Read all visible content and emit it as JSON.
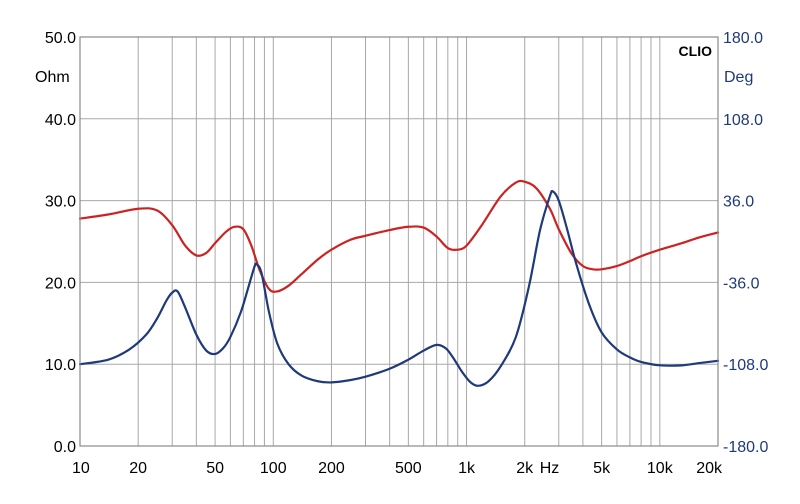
{
  "chart_data": {
    "type": "line",
    "brand": "CLIO",
    "x_scale": "log",
    "xlim": [
      10,
      20000
    ],
    "x_ticks": [
      {
        "v": 10,
        "label": "10"
      },
      {
        "v": 20,
        "label": "20"
      },
      {
        "v": 50,
        "label": "50"
      },
      {
        "v": 100,
        "label": "100"
      },
      {
        "v": 200,
        "label": "200"
      },
      {
        "v": 500,
        "label": "500"
      },
      {
        "v": 1000,
        "label": "1k"
      },
      {
        "v": 2000,
        "label": "2k"
      },
      {
        "v": 5000,
        "label": "5k"
      },
      {
        "v": 10000,
        "label": "10k"
      },
      {
        "v": 20000,
        "label": "20k"
      }
    ],
    "x_unit_label": "Hz",
    "y_left": {
      "unit": "Ohm",
      "lim": [
        0,
        50
      ],
      "ticks": [
        "0.0",
        "10.0",
        "20.0",
        "30.0",
        "40.0",
        "50.0"
      ],
      "color": "#000000"
    },
    "y_right": {
      "unit": "Deg",
      "lim": [
        -180,
        180
      ],
      "ticks": [
        "-180.0",
        "-108.0",
        "-36.0",
        "36.0",
        "108.0",
        "180.0"
      ],
      "color": "#1f3a7a"
    },
    "grid": true,
    "series": [
      {
        "key": "impedance",
        "axis": "left",
        "color": "#cc2222",
        "points": [
          [
            10,
            27.8
          ],
          [
            14,
            28.3
          ],
          [
            20,
            29
          ],
          [
            25,
            28.8
          ],
          [
            30,
            27
          ],
          [
            35,
            24.5
          ],
          [
            40,
            23.3
          ],
          [
            45,
            23.6
          ],
          [
            50,
            24.8
          ],
          [
            57,
            26.2
          ],
          [
            63,
            26.8
          ],
          [
            70,
            26.5
          ],
          [
            77,
            24.5
          ],
          [
            85,
            21.5
          ],
          [
            95,
            19.2
          ],
          [
            105,
            18.9
          ],
          [
            120,
            19.6
          ],
          [
            140,
            21
          ],
          [
            170,
            22.8
          ],
          [
            200,
            24
          ],
          [
            250,
            25.2
          ],
          [
            300,
            25.7
          ],
          [
            400,
            26.4
          ],
          [
            500,
            26.8
          ],
          [
            600,
            26.7
          ],
          [
            700,
            25.6
          ],
          [
            800,
            24.2
          ],
          [
            900,
            24
          ],
          [
            1000,
            24.5
          ],
          [
            1200,
            27
          ],
          [
            1500,
            30.5
          ],
          [
            1800,
            32.2
          ],
          [
            2000,
            32.3
          ],
          [
            2300,
            31.5
          ],
          [
            2700,
            29
          ],
          [
            3000,
            26.5
          ],
          [
            3500,
            23.5
          ],
          [
            4000,
            22
          ],
          [
            4500,
            21.6
          ],
          [
            5000,
            21.6
          ],
          [
            6000,
            22
          ],
          [
            7000,
            22.6
          ],
          [
            8000,
            23.2
          ],
          [
            10000,
            24
          ],
          [
            13000,
            24.8
          ],
          [
            16000,
            25.5
          ],
          [
            20000,
            26.1
          ]
        ]
      },
      {
        "key": "phase",
        "axis": "right",
        "color": "#1f3a7a",
        "points": [
          [
            10,
            -108
          ],
          [
            14,
            -104
          ],
          [
            18,
            -95
          ],
          [
            22,
            -82
          ],
          [
            25,
            -68
          ],
          [
            28,
            -52
          ],
          [
            30,
            -45
          ],
          [
            32,
            -44
          ],
          [
            35,
            -58
          ],
          [
            40,
            -82
          ],
          [
            45,
            -96
          ],
          [
            50,
            -99
          ],
          [
            55,
            -94
          ],
          [
            60,
            -84
          ],
          [
            68,
            -62
          ],
          [
            75,
            -38
          ],
          [
            80,
            -22
          ],
          [
            82,
            -20
          ],
          [
            87,
            -28
          ],
          [
            95,
            -62
          ],
          [
            105,
            -90
          ],
          [
            120,
            -108
          ],
          [
            140,
            -118
          ],
          [
            170,
            -123
          ],
          [
            200,
            -124
          ],
          [
            250,
            -122
          ],
          [
            300,
            -119
          ],
          [
            400,
            -112
          ],
          [
            500,
            -104
          ],
          [
            600,
            -96
          ],
          [
            700,
            -91
          ],
          [
            780,
            -94
          ],
          [
            850,
            -102
          ],
          [
            950,
            -115
          ],
          [
            1050,
            -124
          ],
          [
            1150,
            -127
          ],
          [
            1300,
            -123
          ],
          [
            1500,
            -110
          ],
          [
            1800,
            -84
          ],
          [
            2100,
            -40
          ],
          [
            2400,
            10
          ],
          [
            2700,
            40
          ],
          [
            2800,
            44
          ],
          [
            3000,
            36
          ],
          [
            3300,
            12
          ],
          [
            3700,
            -20
          ],
          [
            4300,
            -55
          ],
          [
            5000,
            -80
          ],
          [
            6000,
            -95
          ],
          [
            7000,
            -102
          ],
          [
            8000,
            -106
          ],
          [
            10000,
            -109
          ],
          [
            13000,
            -109
          ],
          [
            16000,
            -107
          ],
          [
            20000,
            -105
          ]
        ]
      }
    ]
  }
}
